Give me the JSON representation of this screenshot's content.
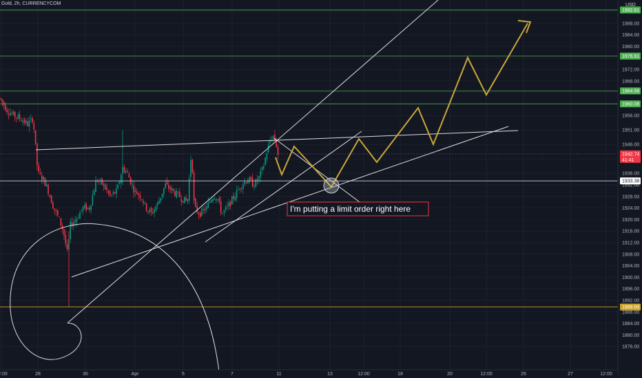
{
  "header": {
    "title": "Gold, 2h, CURRENCYCOM",
    "currency": "USD"
  },
  "annotation": {
    "text": "I'm putting a limit order right here"
  },
  "colors": {
    "background": "#131722",
    "candle_up": "#089981",
    "candle_down": "#f23645",
    "resistance_line": "#4caf50",
    "support_line": "#c9a227",
    "projection": "#c9a83a",
    "current_price": "#f23645",
    "drawing": "#e0e0e0"
  },
  "chart_data": {
    "type": "candlestick",
    "ylim": [
      1876,
      1996
    ],
    "y_ticks": [
      1992.0,
      1988.0,
      1984.0,
      1980.0,
      1976.0,
      1972.0,
      1968.0,
      1964.0,
      1960.0,
      1956.0,
      1951.0,
      1946.0,
      1941.0,
      1936.0,
      1932.0,
      1928.0,
      1924.0,
      1920.0,
      1916.0,
      1912.0,
      1908.0,
      1904.0,
      1900.0,
      1896.0,
      1892.0,
      1888.0,
      1884.0,
      1880.0,
      1876.0
    ],
    "x_ticks": [
      "12:00",
      "28",
      "30",
      "Apr",
      "5",
      "7",
      "11",
      "13",
      "12:00",
      "18",
      "20",
      "12:00",
      "25",
      "27",
      "12:00"
    ],
    "price_labels": [
      {
        "value": "1992.61",
        "kind": "resistance"
      },
      {
        "value": "1976.61",
        "kind": "resistance"
      },
      {
        "value": "1964.56",
        "kind": "resistance"
      },
      {
        "value": "1960.08",
        "kind": "resistance"
      },
      {
        "value": "1942.74",
        "sub": "41:41",
        "kind": "current"
      },
      {
        "value": "1933.38",
        "kind": "level"
      },
      {
        "value": "1889.69",
        "kind": "support"
      }
    ],
    "horizontal_levels": [
      1992.61,
      1976.61,
      1964.56,
      1960.08,
      1933.38,
      1889.69
    ],
    "current_price": 1942.74
  }
}
